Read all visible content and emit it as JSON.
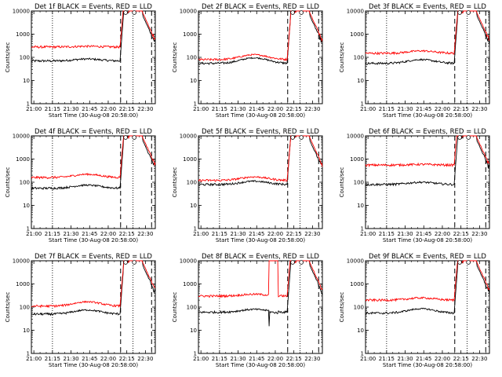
{
  "chart_data": [
    {
      "type": "line",
      "title": "Det 1f BLACK = Events, RED = LLD",
      "xlabel": "Start Time (30-Aug-08 20:58:00)",
      "ylabel": "Counts/sec",
      "xticks": [
        "21:00",
        "21:15",
        "21:30",
        "21:45",
        "22:00",
        "22:15",
        "22:30"
      ],
      "yticks": [
        "1",
        "10",
        "100",
        "1000",
        "10000"
      ],
      "xlim_min": [
        0,
        100
      ],
      "ylim_log10": [
        0,
        4
      ],
      "series": [
        {
          "name": "Events",
          "color": "#000000",
          "base": 70,
          "hump": 15
        },
        {
          "name": "LLD",
          "color": "#ff0000",
          "base": 280,
          "hump": 20
        }
      ]
    },
    {
      "type": "line",
      "title": "Det 2f BLACK = Events, RED = LLD",
      "xlabel": "Start Time (30-Aug-08 20:58:00)",
      "ylabel": "Counts/sec",
      "xticks": [
        "21:00",
        "21:15",
        "21:30",
        "21:45",
        "22:00",
        "22:15",
        "22:30"
      ],
      "yticks": [
        "1",
        "10",
        "100",
        "1000",
        "10000"
      ],
      "xlim_min": [
        0,
        100
      ],
      "ylim_log10": [
        0,
        4
      ],
      "series": [
        {
          "name": "Events",
          "color": "#000000",
          "base": 55,
          "hump": 40
        },
        {
          "name": "LLD",
          "color": "#ff0000",
          "base": 80,
          "hump": 50
        }
      ]
    },
    {
      "type": "line",
      "title": "Det 3f BLACK = Events, RED = LLD",
      "xlabel": "Start Time (30-Aug-08 20:58:00)",
      "ylabel": "Counts/sec",
      "xticks": [
        "21:00",
        "21:15",
        "21:30",
        "21:45",
        "22:00",
        "22:15",
        "22:30"
      ],
      "yticks": [
        "1",
        "10",
        "100",
        "1000",
        "10000"
      ],
      "xlim_min": [
        0,
        100
      ],
      "ylim_log10": [
        0,
        4
      ],
      "series": [
        {
          "name": "Events",
          "color": "#000000",
          "base": 55,
          "hump": 25
        },
        {
          "name": "LLD",
          "color": "#ff0000",
          "base": 150,
          "hump": 40
        }
      ]
    },
    {
      "type": "line",
      "title": "Det 4f BLACK = Events, RED = LLD",
      "xlabel": "Start Time (30-Aug-08 20:58:00)",
      "ylabel": "Counts/sec",
      "xticks": [
        "21:00",
        "21:15",
        "21:30",
        "21:45",
        "22:00",
        "22:15",
        "22:30"
      ],
      "yticks": [
        "1",
        "10",
        "100",
        "1000",
        "10000"
      ],
      "xlim_min": [
        0,
        100
      ],
      "ylim_log10": [
        0,
        4
      ],
      "series": [
        {
          "name": "Events",
          "color": "#000000",
          "base": 55,
          "hump": 20
        },
        {
          "name": "LLD",
          "color": "#ff0000",
          "base": 160,
          "hump": 60
        }
      ]
    },
    {
      "type": "line",
      "title": "Det 5f BLACK = Events, RED = LLD",
      "xlabel": "Start Time (30-Aug-08 20:58:00)",
      "ylabel": "Counts/sec",
      "xticks": [
        "21:00",
        "21:15",
        "21:30",
        "21:45",
        "22:00",
        "22:15",
        "22:30"
      ],
      "yticks": [
        "1",
        "10",
        "100",
        "1000",
        "10000"
      ],
      "xlim_min": [
        0,
        100
      ],
      "ylim_log10": [
        0,
        4
      ],
      "series": [
        {
          "name": "Events",
          "color": "#000000",
          "base": 80,
          "hump": 30
        },
        {
          "name": "LLD",
          "color": "#ff0000",
          "base": 120,
          "hump": 50
        }
      ]
    },
    {
      "type": "line",
      "title": "Det 6f BLACK = Events, RED = LLD",
      "xlabel": "Start Time (30-Aug-08 20:58:00)",
      "ylabel": "Counts/sec",
      "xticks": [
        "21:00",
        "21:15",
        "21:30",
        "21:45",
        "22:00",
        "22:15",
        "22:30"
      ],
      "yticks": [
        "1",
        "10",
        "100",
        "1000",
        "10000"
      ],
      "xlim_min": [
        0,
        100
      ],
      "ylim_log10": [
        0,
        4
      ],
      "series": [
        {
          "name": "Events",
          "color": "#000000",
          "base": 80,
          "hump": 20
        },
        {
          "name": "LLD",
          "color": "#ff0000",
          "base": 550,
          "hump": 40
        }
      ]
    },
    {
      "type": "line",
      "title": "Det 7f BLACK = Events, RED = LLD",
      "xlabel": "Start Time (30-Aug-08 20:58:00)",
      "ylabel": "Counts/sec",
      "xticks": [
        "21:00",
        "21:15",
        "21:30",
        "21:45",
        "22:00",
        "22:15",
        "22:30"
      ],
      "yticks": [
        "1",
        "10",
        "100",
        "1000",
        "10000"
      ],
      "xlim_min": [
        0,
        100
      ],
      "ylim_log10": [
        0,
        4
      ],
      "series": [
        {
          "name": "Events",
          "color": "#000000",
          "base": 50,
          "hump": 25
        },
        {
          "name": "LLD",
          "color": "#ff0000",
          "base": 110,
          "hump": 60
        }
      ]
    },
    {
      "type": "line",
      "title": "Det 8f BLACK = Events, RED = LLD",
      "xlabel": "Start Time (30-Aug-08 20:58:00)",
      "ylabel": "Counts/sec",
      "xticks": [
        "21:00",
        "21:15",
        "21:30",
        "21:45",
        "22:00",
        "22:15",
        "22:30"
      ],
      "yticks": [
        "1",
        "10",
        "100",
        "1000",
        "10000"
      ],
      "xlim_min": [
        0,
        100
      ],
      "ylim_log10": [
        0,
        4
      ],
      "series": [
        {
          "name": "Events",
          "color": "#000000",
          "base": 60,
          "hump": 20
        },
        {
          "name": "LLD",
          "color": "#ff0000",
          "base": 300,
          "hump": 60
        }
      ],
      "anomaly": {
        "x_min": [
          57,
          64
        ],
        "lld_level": 10000,
        "events_dip": 15
      }
    },
    {
      "type": "line",
      "title": "Det 9f BLACK = Events, RED = LLD",
      "xlabel": "Start Time (30-Aug-08 20:58:00)",
      "ylabel": "Counts/sec",
      "xticks": [
        "21:00",
        "21:15",
        "21:30",
        "21:45",
        "22:00",
        "22:15",
        "22:30"
      ],
      "yticks": [
        "1",
        "10",
        "100",
        "1000",
        "10000"
      ],
      "xlim_min": [
        0,
        100
      ],
      "ylim_log10": [
        0,
        4
      ],
      "series": [
        {
          "name": "Events",
          "color": "#000000",
          "base": 55,
          "hump": 30
        },
        {
          "name": "LLD",
          "color": "#ff0000",
          "base": 200,
          "hump": 50
        }
      ]
    }
  ],
  "markers": {
    "dotted_min": [
      17,
      82
    ],
    "dashed_min": [
      72,
      97
    ]
  }
}
